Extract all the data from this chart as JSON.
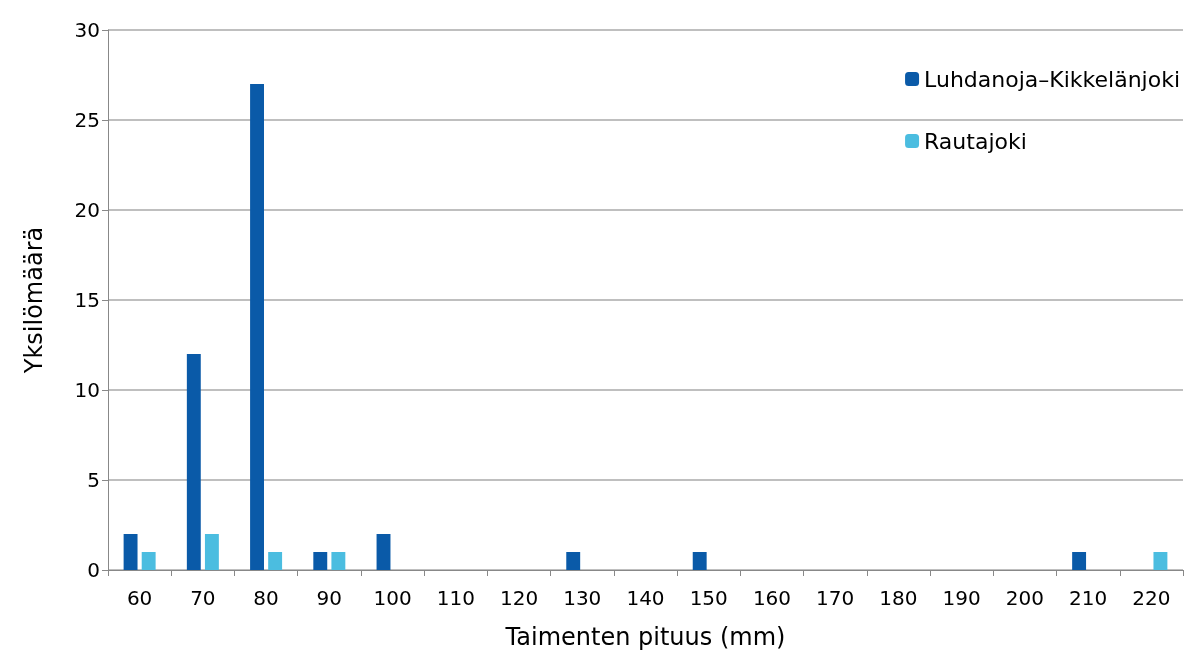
{
  "chart_data": {
    "type": "bar",
    "xlabel": "Taimenten pituus (mm)",
    "ylabel": "Yksilömäärä",
    "categories": [
      "60",
      "70",
      "80",
      "90",
      "100",
      "110",
      "120",
      "130",
      "140",
      "150",
      "160",
      "170",
      "180",
      "190",
      "200",
      "210",
      "220"
    ],
    "series": [
      {
        "name": "Luhdanoja–Kikkelänjoki",
        "color": "#0a5aa8",
        "values": [
          2,
          12,
          27,
          1,
          2,
          0,
          0,
          1,
          0,
          1,
          0,
          0,
          0,
          0,
          0,
          1,
          0
        ]
      },
      {
        "name": "Rautajoki",
        "color": "#4bbde0",
        "values": [
          1,
          2,
          1,
          1,
          0,
          0,
          0,
          0,
          0,
          0,
          0,
          0,
          0,
          0,
          0,
          0,
          1
        ]
      }
    ],
    "ylim": [
      0,
      30
    ],
    "yticks": [
      0,
      5,
      10,
      15,
      20,
      25,
      30
    ],
    "grid": "y",
    "legend": "top right"
  }
}
